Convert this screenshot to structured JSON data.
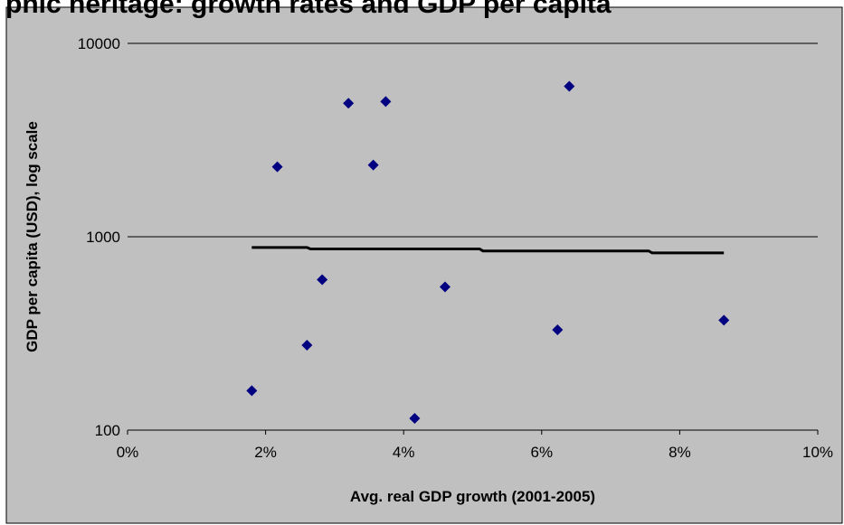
{
  "chart_data": {
    "type": "scatter",
    "title": "",
    "xlabel": "Avg. real GDP growth (2001-2005)",
    "ylabel": "GDP per capita (USD), log scale",
    "x_unit": "percent",
    "xlim": [
      0,
      10
    ],
    "ylim": [
      100,
      10000
    ],
    "y_scale": "log",
    "x_ticks": [
      0,
      2,
      4,
      6,
      8,
      10
    ],
    "x_tick_labels": [
      "0%",
      "2%",
      "4%",
      "6%",
      "8%",
      "10%"
    ],
    "y_ticks": [
      100,
      1000,
      10000
    ],
    "y_tick_labels": [
      "100",
      "1000",
      "10000"
    ],
    "grid": {
      "horizontal": true,
      "vertical": false
    },
    "legend": "none",
    "colors": {
      "points": "#000080",
      "trendline": "#000000",
      "plot_background": "#c0c0c0",
      "gridline": "#000000"
    },
    "marker": "diamond",
    "points": [
      {
        "x": 1.8,
        "y": 160
      },
      {
        "x": 2.17,
        "y": 2300
      },
      {
        "x": 2.6,
        "y": 275
      },
      {
        "x": 2.82,
        "y": 600
      },
      {
        "x": 3.2,
        "y": 4900
      },
      {
        "x": 3.56,
        "y": 2350
      },
      {
        "x": 3.74,
        "y": 5000
      },
      {
        "x": 4.16,
        "y": 115
      },
      {
        "x": 4.6,
        "y": 550
      },
      {
        "x": 6.23,
        "y": 330
      },
      {
        "x": 6.4,
        "y": 6000
      },
      {
        "x": 8.64,
        "y": 370
      }
    ],
    "trendline": [
      {
        "x": 1.8,
        "y": 880
      },
      {
        "x": 2.6,
        "y": 880
      },
      {
        "x": 2.65,
        "y": 865
      },
      {
        "x": 5.1,
        "y": 865
      },
      {
        "x": 5.15,
        "y": 845
      },
      {
        "x": 7.55,
        "y": 845
      },
      {
        "x": 7.6,
        "y": 825
      },
      {
        "x": 8.64,
        "y": 825
      }
    ]
  }
}
